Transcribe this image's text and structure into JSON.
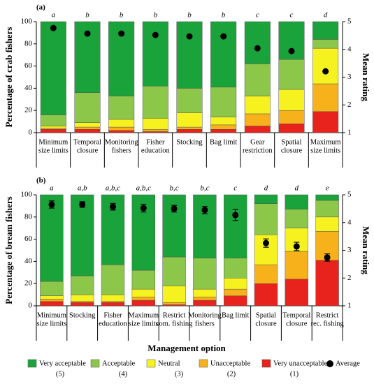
{
  "x_label": "Management option",
  "legend": {
    "entries": [
      {
        "name": "Very acceptable",
        "code": "(5)"
      },
      {
        "name": "Acceptable",
        "code": "(4)"
      },
      {
        "name": "Neutral",
        "code": "(3)"
      },
      {
        "name": "Unacceptable",
        "code": "(2)"
      },
      {
        "name": "Very unacceptable",
        "code": "(1)"
      }
    ],
    "average": "Average"
  },
  "chart_data": [
    {
      "type": "bar",
      "stacked": true,
      "panel_label": "(a)",
      "ylabel": "Percentage of crab fishers",
      "y2label": "Mean rating",
      "ylim": [
        0,
        100
      ],
      "yticks": [
        0,
        20,
        40,
        60,
        80,
        100
      ],
      "y2lim": [
        1,
        5
      ],
      "y2ticks": [
        1,
        2,
        3,
        4,
        5
      ],
      "categories": [
        [
          "Minimum",
          "size limits"
        ],
        [
          "Temporal",
          "closure"
        ],
        [
          "Monitoring",
          "fishers"
        ],
        [
          "Fisher",
          "education"
        ],
        [
          "Stocking"
        ],
        [
          "Bag limit"
        ],
        [
          "Gear",
          "restriction"
        ],
        [
          "Spatial",
          "closure"
        ],
        [
          "Maximum",
          "size limits"
        ]
      ],
      "group_labels": [
        "a",
        "b",
        "b",
        "b",
        "b",
        "b",
        "c",
        "c",
        "d"
      ],
      "series": [
        {
          "color": "#e8221c",
          "values": [
            3,
            3,
            2,
            1,
            3,
            3,
            6,
            8,
            19
          ]
        },
        {
          "color": "#f7b21b",
          "values": [
            1,
            2,
            3,
            2,
            2,
            4,
            11,
            12,
            25
          ]
        },
        {
          "color": "#f6f21f",
          "values": [
            2,
            4,
            7,
            10,
            13,
            7,
            16,
            19,
            32
          ]
        },
        {
          "color": "#8dc74a",
          "values": [
            10,
            27,
            21,
            29,
            22,
            27,
            29,
            27,
            8
          ]
        },
        {
          "color": "#1aa33a",
          "values": [
            84,
            64,
            67,
            58,
            60,
            59,
            38,
            34,
            16
          ]
        },
        {
          "type": "scatter",
          "axis": "y2",
          "color": "#000000",
          "values": [
            4.77,
            4.57,
            4.57,
            4.52,
            4.47,
            4.47,
            4.04,
            3.94,
            3.21
          ]
        }
      ]
    },
    {
      "type": "bar",
      "stacked": true,
      "panel_label": "(b)",
      "ylabel": "Percentage of bream fishers",
      "y2label": "Mean rating",
      "ylim": [
        0,
        100
      ],
      "yticks": [
        0,
        20,
        40,
        60,
        80,
        100
      ],
      "y2lim": [
        1,
        5
      ],
      "y2ticks": [
        1,
        2,
        3,
        4,
        5
      ],
      "categories": [
        [
          "Minimum",
          "size limits"
        ],
        [
          "Stocking"
        ],
        [
          "Fisher",
          "education"
        ],
        [
          "Maximum",
          "size limits"
        ],
        [
          "Restrict",
          "com. fishing"
        ],
        [
          "Monitoring",
          "fishers"
        ],
        [
          "Bag limit"
        ],
        [
          "Spatial",
          "closure"
        ],
        [
          "Temporal",
          "closure"
        ],
        [
          "Restrict",
          "rec. fishing"
        ]
      ],
      "group_labels": [
        "a",
        "a,b",
        "a,b,c",
        "a,b,c",
        "b,c",
        "b,c",
        "c",
        "d",
        "d",
        "e"
      ],
      "series": [
        {
          "color": "#e8221c",
          "values": [
            4,
            3,
            3,
            5,
            1,
            5,
            9,
            20,
            24,
            41
          ]
        },
        {
          "color": "#f7b21b",
          "values": [
            2,
            1,
            1,
            3,
            2,
            3,
            6,
            17,
            25,
            26
          ]
        },
        {
          "color": "#f6f21f",
          "values": [
            3,
            6,
            6,
            7,
            15,
            7,
            10,
            27,
            21,
            13
          ]
        },
        {
          "color": "#8dc74a",
          "values": [
            13,
            17,
            27,
            17,
            26,
            28,
            18,
            28,
            17,
            15
          ]
        },
        {
          "color": "#1aa33a",
          "values": [
            78,
            73,
            63,
            68,
            56,
            57,
            57,
            8,
            13,
            5
          ]
        },
        {
          "type": "scatter",
          "axis": "y2",
          "color": "#000000",
          "values": [
            4.65,
            4.65,
            4.57,
            4.52,
            4.5,
            4.45,
            4.27,
            3.26,
            3.14,
            2.74
          ],
          "errors": [
            0.13,
            0.1,
            0.12,
            0.14,
            0.12,
            0.13,
            0.2,
            0.15,
            0.15,
            0.13
          ]
        }
      ]
    }
  ]
}
